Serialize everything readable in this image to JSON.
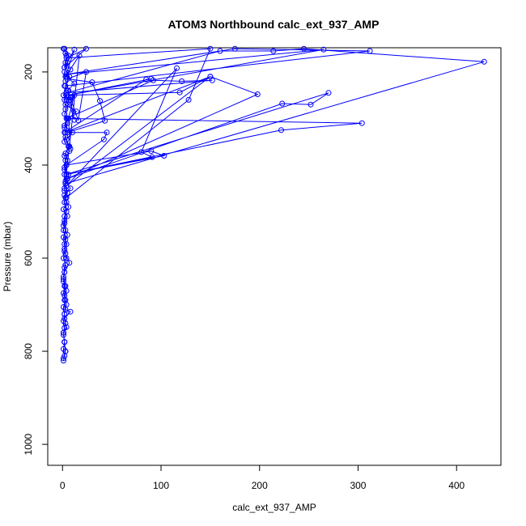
{
  "chart_data": {
    "type": "line",
    "title": "ATOM3 Northbound calc_ext_937_AMP",
    "xlabel": "calc_ext_937_AMP",
    "ylabel": "Pressure (mbar)",
    "xlim": [
      -15,
      445
    ],
    "ylim": [
      1045,
      148
    ],
    "y_reversed": true,
    "x_ticks": [
      0,
      100,
      200,
      300,
      400
    ],
    "y_ticks": [
      200,
      400,
      600,
      800,
      1000
    ],
    "grid": false,
    "legend": "none",
    "marker": "open-circle",
    "color": "#0000ff",
    "series": [
      {
        "points": [
          [
            2,
            150
          ],
          [
            6,
            165
          ],
          [
            3,
            180
          ],
          [
            8,
            195
          ],
          [
            4,
            210
          ],
          [
            12,
            225
          ],
          [
            5,
            240
          ],
          [
            9,
            255
          ],
          [
            3,
            270
          ],
          [
            14,
            285
          ],
          [
            6,
            300
          ],
          [
            2,
            315
          ],
          [
            10,
            330
          ],
          [
            4,
            345
          ],
          [
            7,
            360
          ],
          [
            3,
            375
          ],
          [
            5,
            390
          ],
          [
            2,
            405
          ],
          [
            6,
            420
          ],
          [
            3,
            435
          ],
          [
            8,
            450
          ],
          [
            2,
            465
          ],
          [
            4,
            480
          ],
          [
            1,
            495
          ],
          [
            5,
            510
          ],
          [
            2,
            525
          ],
          [
            3,
            540
          ],
          [
            1,
            555
          ],
          [
            4,
            570
          ],
          [
            2,
            585
          ],
          [
            1,
            600
          ],
          [
            3,
            615
          ],
          [
            2,
            630
          ],
          [
            1,
            645
          ],
          [
            2,
            660
          ],
          [
            1,
            675
          ],
          [
            3,
            690
          ],
          [
            1,
            705
          ],
          [
            2,
            720
          ],
          [
            1,
            735
          ],
          [
            2,
            750
          ],
          [
            1,
            765
          ],
          [
            2,
            780
          ],
          [
            1,
            795
          ],
          [
            2,
            810
          ],
          [
            1,
            820
          ],
          [
            3,
            800
          ],
          [
            2,
            780
          ],
          [
            1,
            760
          ],
          [
            3,
            740
          ],
          [
            2,
            720
          ],
          [
            4,
            700
          ],
          [
            2,
            680
          ],
          [
            3,
            660
          ],
          [
            1,
            640
          ],
          [
            2,
            620
          ],
          [
            4,
            600
          ],
          [
            2,
            580
          ],
          [
            3,
            560
          ],
          [
            1,
            540
          ],
          [
            2,
            520
          ],
          [
            4,
            500
          ],
          [
            2,
            480
          ],
          [
            5,
            460
          ],
          [
            3,
            440
          ],
          [
            2,
            420
          ],
          [
            4,
            400
          ],
          [
            2,
            380
          ],
          [
            6,
            360
          ],
          [
            3,
            340
          ],
          [
            2,
            320
          ],
          [
            5,
            300
          ],
          [
            3,
            280
          ],
          [
            2,
            260
          ],
          [
            6,
            240
          ],
          [
            3,
            220
          ],
          [
            2,
            200
          ],
          [
            5,
            180
          ],
          [
            3,
            160
          ],
          [
            1,
            150
          ],
          [
            4,
            165
          ],
          [
            2,
            190
          ],
          [
            7,
            210
          ],
          [
            3,
            230
          ],
          [
            1,
            250
          ],
          [
            6,
            270
          ],
          [
            2,
            290
          ],
          [
            5,
            310
          ],
          [
            3,
            330
          ],
          [
            2,
            350
          ],
          [
            7,
            370
          ],
          [
            3,
            390
          ],
          [
            2,
            410
          ],
          [
            5,
            430
          ],
          [
            2,
            450
          ],
          [
            3,
            470
          ],
          [
            6,
            490
          ],
          [
            2,
            510
          ],
          [
            1,
            530
          ],
          [
            5,
            550
          ],
          [
            2,
            570
          ],
          [
            3,
            590
          ],
          [
            7,
            610
          ],
          [
            2,
            630
          ],
          [
            1,
            650
          ],
          [
            4,
            670
          ],
          [
            2,
            690
          ],
          [
            3,
            710
          ],
          [
            8,
            715
          ],
          [
            2,
            730
          ],
          [
            4,
            748
          ],
          [
            1,
            760
          ],
          [
            2,
            780
          ],
          [
            3,
            800
          ],
          [
            1,
            815
          ]
        ]
      },
      {
        "points": [
          [
            3,
            440
          ],
          [
            428,
            178
          ],
          [
            245,
            150
          ],
          [
            214,
            155
          ],
          [
            160,
            155
          ],
          [
            4,
            245
          ],
          [
            152,
            218
          ],
          [
            121,
            220
          ],
          [
            92,
            218
          ],
          [
            4,
            300
          ],
          [
            304,
            310
          ],
          [
            222,
            325
          ],
          [
            4,
            420
          ],
          [
            270,
            245
          ],
          [
            252,
            270
          ],
          [
            223,
            268
          ],
          [
            4,
            430
          ],
          [
            198,
            248
          ],
          [
            150,
            210
          ],
          [
            4,
            445
          ],
          [
            116,
            192
          ],
          [
            80,
            372
          ],
          [
            91,
            383
          ],
          [
            4,
            420
          ],
          [
            103,
            380
          ],
          [
            90,
            370
          ],
          [
            4,
            400
          ],
          [
            42,
            345
          ],
          [
            45,
            330
          ],
          [
            5,
            330
          ],
          [
            43,
            305
          ],
          [
            38,
            262
          ],
          [
            30,
            222
          ],
          [
            5,
            215
          ],
          [
            24,
            200
          ],
          [
            16,
            304
          ],
          [
            8,
            255
          ],
          [
            4,
            260
          ]
        ]
      },
      {
        "points": [
          [
            2,
            230
          ],
          [
            312,
            155
          ],
          [
            175,
            150
          ],
          [
            4,
            205
          ],
          [
            265,
            152
          ],
          [
            5,
            250
          ],
          [
            90,
            215
          ],
          [
            85,
            216
          ],
          [
            2,
            330
          ],
          [
            150,
            210
          ],
          [
            119,
            244
          ],
          [
            4,
            250
          ],
          [
            12,
            303
          ],
          [
            8,
            260
          ],
          [
            12,
            250
          ],
          [
            6,
            300
          ],
          [
            8,
            365
          ]
        ]
      },
      {
        "points": [
          [
            4,
            470
          ],
          [
            128,
            260
          ],
          [
            150,
            150
          ],
          [
            4,
            170
          ],
          [
            24,
            150
          ],
          [
            2,
            190
          ],
          [
            12,
            152
          ],
          [
            3,
            210
          ],
          [
            17,
            165
          ],
          [
            2,
            455
          ]
        ]
      }
    ]
  }
}
